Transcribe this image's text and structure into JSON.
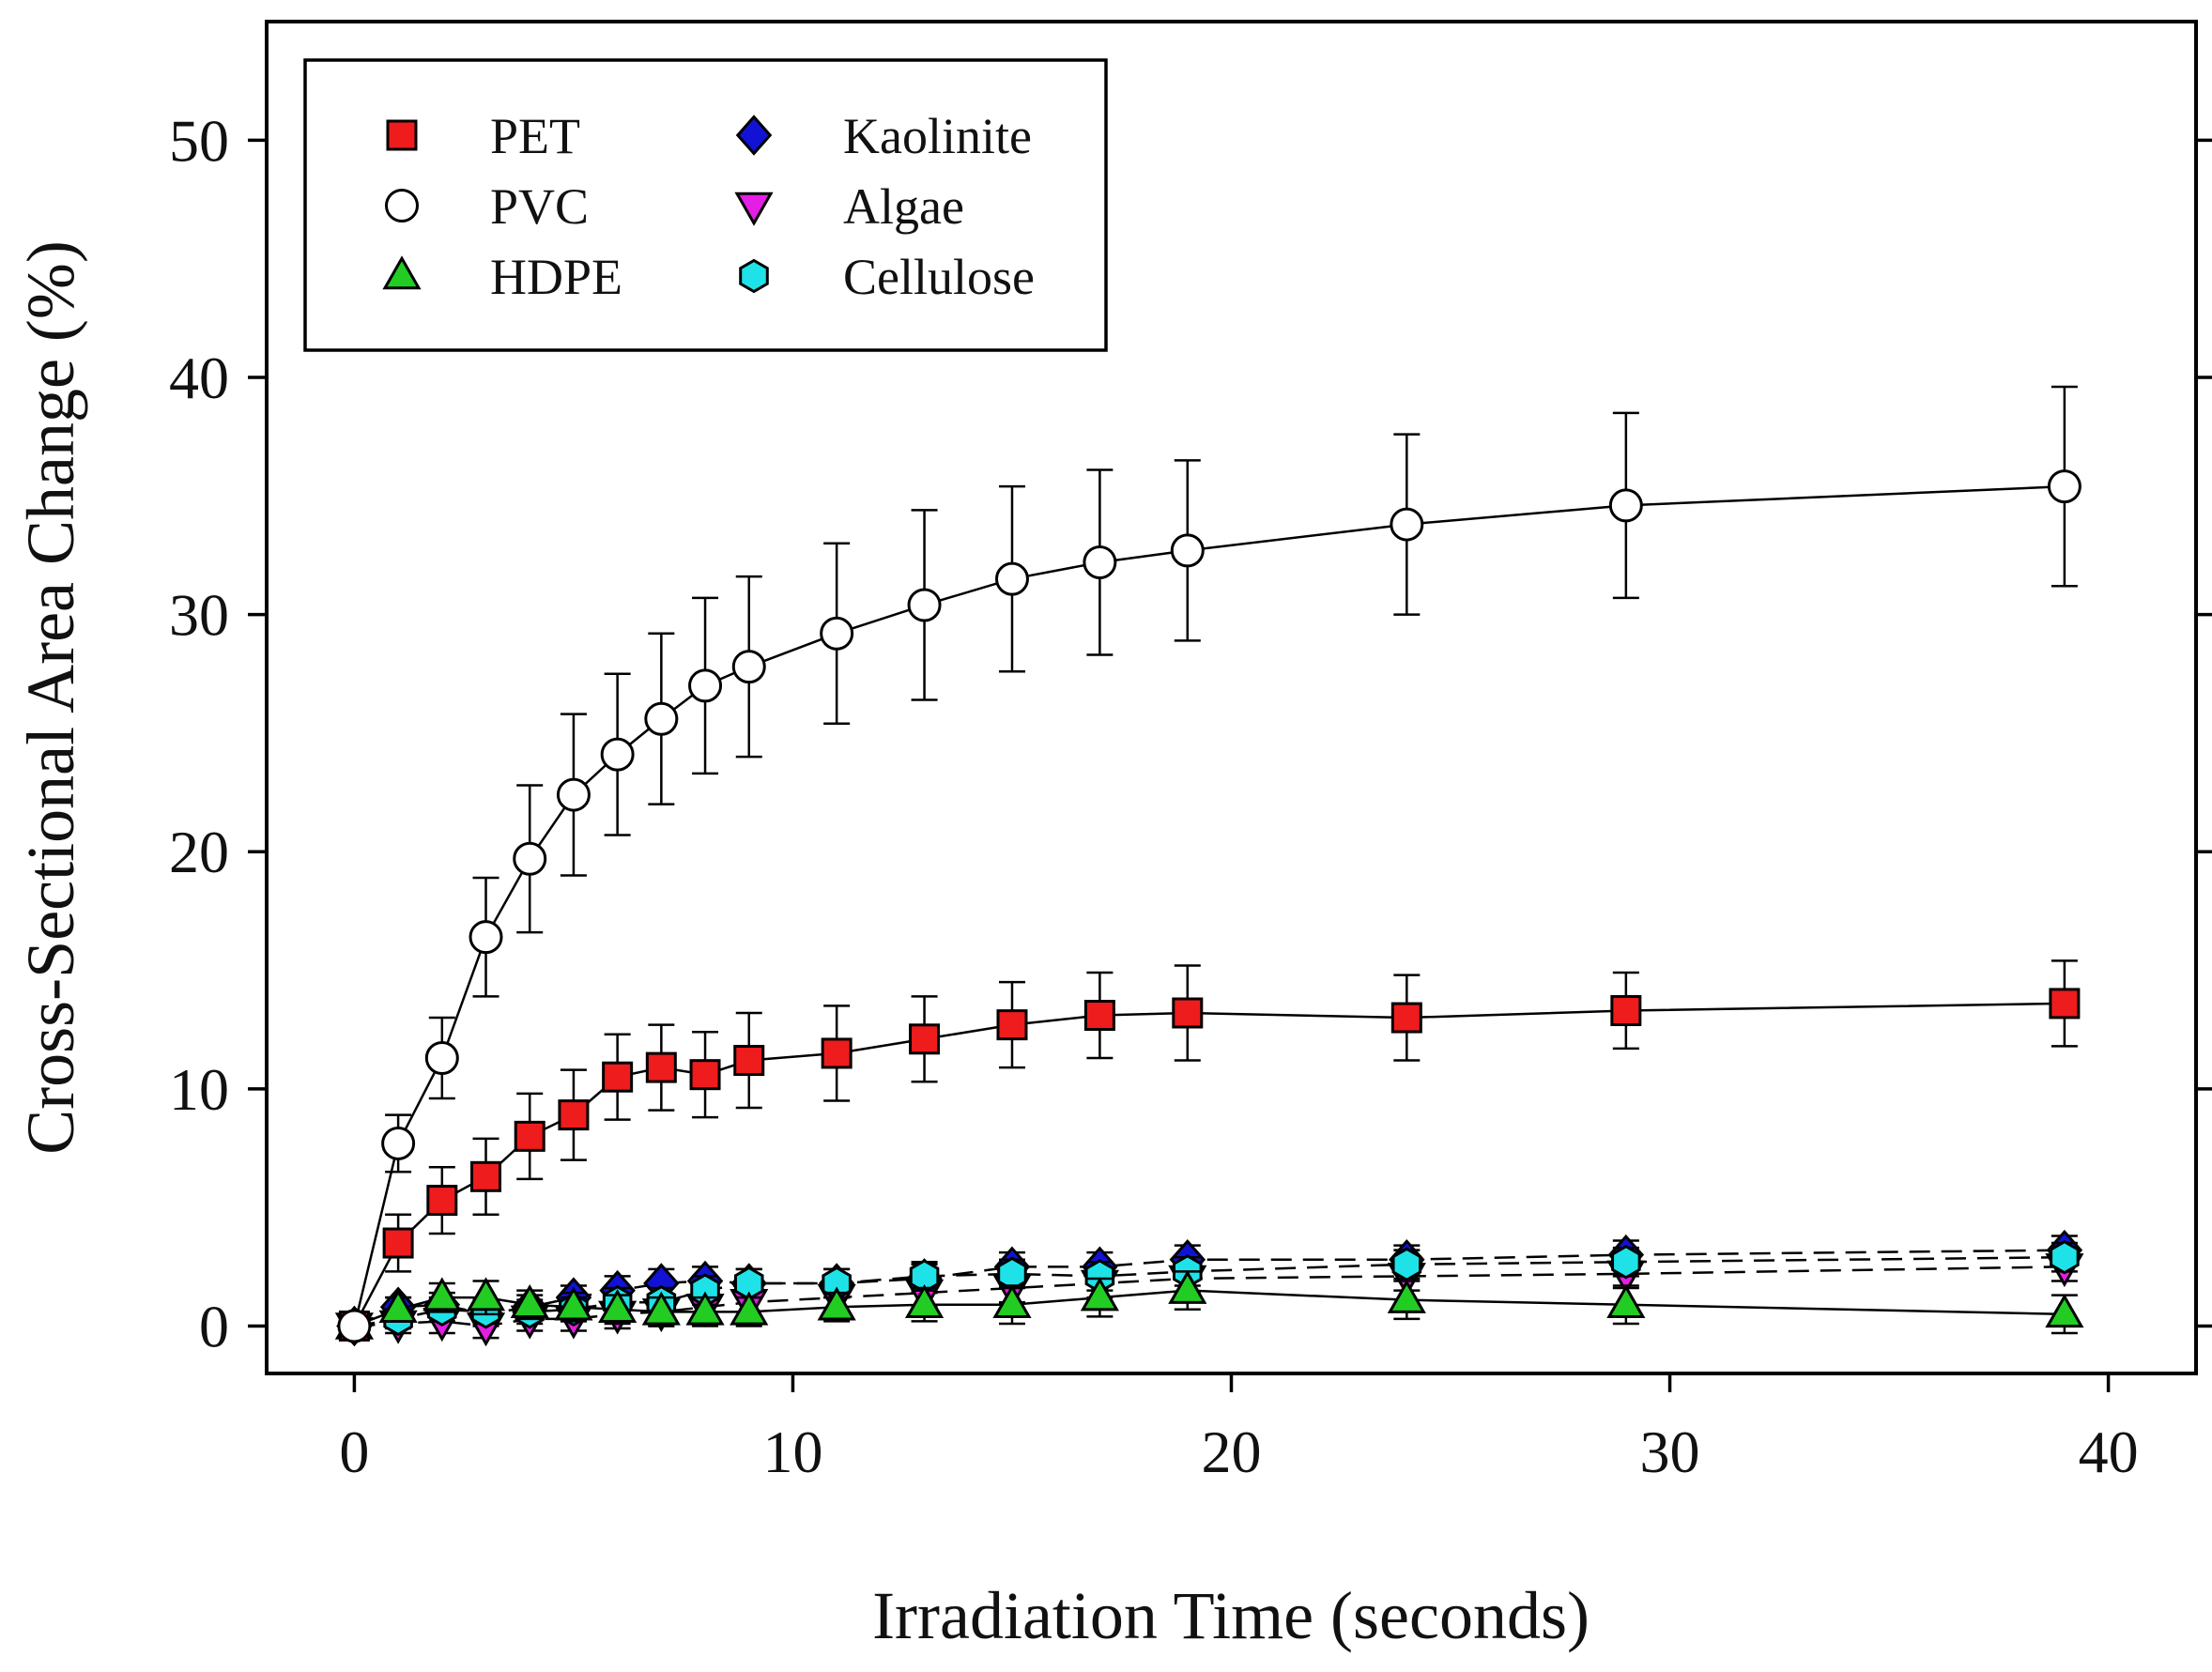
{
  "chart_data": {
    "type": "scatter",
    "title": "",
    "xlabel": "Irradiation Time (seconds)",
    "ylabel": "Cross-Sectional Area Change (%)",
    "xlim": [
      -2,
      42
    ],
    "ylim": [
      -2,
      55
    ],
    "xticks": [
      0,
      10,
      20,
      30,
      40
    ],
    "yticks": [
      0,
      10,
      20,
      30,
      40,
      50
    ],
    "legend_position": "top-left",
    "series": [
      {
        "name": "PET",
        "marker": "square",
        "fill": "#ee1c1c",
        "line": "solid",
        "x": [
          0,
          1,
          2,
          3,
          4,
          5,
          6,
          7,
          8,
          9,
          11,
          13,
          15,
          17,
          19,
          24,
          29,
          39
        ],
        "y": [
          0,
          3.5,
          5.3,
          6.3,
          8.0,
          8.9,
          10.5,
          10.9,
          10.6,
          11.2,
          11.5,
          12.1,
          12.7,
          13.1,
          13.2,
          13.0,
          13.3,
          13.6
        ],
        "err": [
          0,
          1.2,
          1.4,
          1.6,
          1.8,
          1.9,
          1.8,
          1.8,
          1.8,
          2.0,
          2.0,
          1.8,
          1.8,
          1.8,
          2.0,
          1.8,
          1.6,
          1.8
        ]
      },
      {
        "name": "PVC",
        "marker": "circle",
        "fill": "#ffffff",
        "line": "solid",
        "x": [
          0,
          1,
          2,
          3,
          4,
          5,
          6,
          7,
          8,
          9,
          11,
          13,
          15,
          17,
          19,
          24,
          29,
          39
        ],
        "y": [
          0,
          7.7,
          11.3,
          16.4,
          19.7,
          22.4,
          24.1,
          25.6,
          27.0,
          27.8,
          29.2,
          30.4,
          31.5,
          32.2,
          32.7,
          33.8,
          34.6,
          35.4
        ],
        "err": [
          0,
          1.2,
          1.7,
          2.5,
          3.1,
          3.4,
          3.4,
          3.6,
          3.7,
          3.8,
          3.8,
          4.0,
          3.9,
          3.9,
          3.8,
          3.8,
          3.9,
          4.2
        ]
      },
      {
        "name": "HDPE",
        "marker": "triangle-up",
        "fill": "#22cc22",
        "line": "solid",
        "x": [
          0,
          1,
          2,
          3,
          4,
          5,
          6,
          7,
          8,
          9,
          11,
          13,
          15,
          17,
          19,
          24,
          29,
          39
        ],
        "y": [
          0,
          0.7,
          1.2,
          1.2,
          0.9,
          0.8,
          0.7,
          0.6,
          0.6,
          0.6,
          0.8,
          0.9,
          0.9,
          1.2,
          1.5,
          1.1,
          0.9,
          0.5
        ],
        "err": [
          0,
          0.5,
          0.6,
          0.7,
          0.6,
          0.6,
          0.6,
          0.6,
          0.6,
          0.6,
          0.6,
          0.7,
          0.8,
          0.8,
          0.8,
          0.8,
          0.8,
          0.8
        ]
      },
      {
        "name": "Kaolinite",
        "marker": "diamond",
        "fill": "#1212d4",
        "line": "dashed",
        "x": [
          0,
          1,
          2,
          3,
          4,
          5,
          6,
          7,
          8,
          9,
          11,
          13,
          15,
          17,
          19,
          24,
          29,
          39
        ],
        "y": [
          0,
          0.8,
          0.9,
          0.5,
          0.8,
          1.2,
          1.5,
          1.8,
          1.9,
          1.8,
          1.8,
          2.0,
          2.5,
          2.5,
          2.8,
          2.8,
          3.0,
          3.2
        ],
        "err": [
          0,
          0.4,
          0.5,
          0.5,
          0.5,
          0.5,
          0.6,
          0.6,
          0.6,
          0.6,
          0.6,
          0.6,
          0.6,
          0.6,
          0.6,
          0.6,
          0.6,
          0.6
        ]
      },
      {
        "name": "Algae",
        "marker": "triangle-down",
        "fill": "#e41ee4",
        "line": "dashed",
        "x": [
          0,
          1,
          2,
          3,
          4,
          5,
          6,
          7,
          8,
          9,
          11,
          13,
          15,
          17,
          19,
          24,
          29,
          39
        ],
        "y": [
          0,
          0.1,
          0.2,
          0.0,
          0.3,
          0.3,
          0.5,
          0.6,
          0.8,
          1.0,
          1.2,
          1.4,
          1.6,
          1.8,
          2.0,
          2.1,
          2.2,
          2.5
        ],
        "err": [
          0,
          0.4,
          0.5,
          0.5,
          0.5,
          0.5,
          0.6,
          0.6,
          0.6,
          0.6,
          0.6,
          0.6,
          0.6,
          0.6,
          0.6,
          0.6,
          0.6,
          0.6
        ]
      },
      {
        "name": "Cellulose",
        "marker": "hexagon",
        "fill": "#1ee2e8",
        "line": "dashed",
        "x": [
          0,
          1,
          2,
          3,
          4,
          5,
          6,
          7,
          8,
          9,
          11,
          13,
          15,
          17,
          19,
          24,
          29,
          39
        ],
        "y": [
          0,
          0.3,
          0.7,
          0.6,
          0.6,
          0.7,
          1.0,
          1.0,
          1.5,
          1.8,
          1.8,
          2.1,
          2.2,
          2.1,
          2.3,
          2.6,
          2.7,
          2.9
        ],
        "err": [
          0,
          0.4,
          0.5,
          0.5,
          0.5,
          0.5,
          0.6,
          0.6,
          0.6,
          0.6,
          0.6,
          0.6,
          0.6,
          0.6,
          0.6,
          0.6,
          0.6,
          0.6
        ]
      }
    ]
  }
}
